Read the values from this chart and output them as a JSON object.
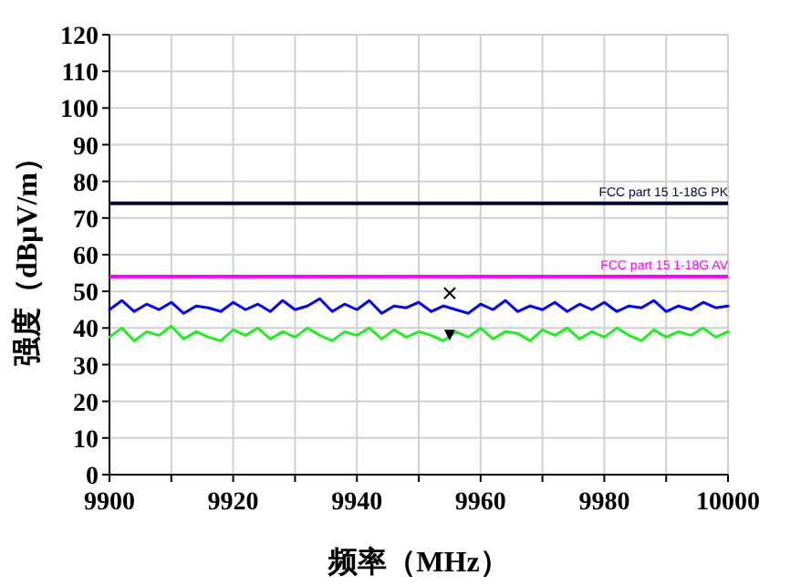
{
  "chart_data": {
    "type": "line",
    "xlabel": "频率（MHz）",
    "ylabel": "强度（dBμV/m）",
    "xlim": [
      9900,
      10000
    ],
    "xticks": [
      9900,
      {
        "value": 9910,
        "label": null
      },
      9920,
      {
        "value": 9930,
        "label": null
      },
      9940,
      {
        "value": 9950,
        "label": null
      },
      9960,
      {
        "value": 9970,
        "label": null
      },
      9980,
      {
        "value": 9990,
        "label": null
      },
      10000
    ],
    "ylim": [
      0,
      120
    ],
    "yticks": [
      0,
      10,
      20,
      30,
      40,
      50,
      60,
      70,
      80,
      90,
      100,
      110,
      120
    ],
    "grid": true,
    "marker": "none",
    "line_style": "solid",
    "ref_lines": [
      {
        "axis": "y",
        "value": 74,
        "label": "FCC part 15  1-18G  PK",
        "color": "#000033"
      },
      {
        "axis": "y",
        "value": 54,
        "label": "FCC part 15  1-18G  AV",
        "color": "#ff00ff"
      }
    ],
    "series": [
      {
        "color": "#0000ff",
        "x": [
          9900,
          9902,
          9904,
          9906,
          9908,
          9910,
          9912,
          9914,
          9916,
          9918,
          9920,
          9922,
          9924,
          9926,
          9928,
          9930,
          9932,
          9934,
          9936,
          9938,
          9940,
          9942,
          9944,
          9946,
          9948,
          9950,
          9952,
          9954,
          9956,
          9958,
          9960,
          9962,
          9964,
          9966,
          9968,
          9970,
          9972,
          9974,
          9976,
          9978,
          9980,
          9982,
          9984,
          9986,
          9988,
          9990,
          9992,
          9994,
          9996,
          9998,
          10000
        ],
        "values": [
          45,
          47.5,
          44.5,
          46.5,
          45,
          47,
          44,
          46,
          45.5,
          44.5,
          47,
          45,
          46.5,
          44.5,
          47.5,
          45,
          46,
          48,
          44.5,
          46.5,
          45,
          47.5,
          44,
          46,
          45.5,
          47,
          44.5,
          46,
          45,
          44,
          46.5,
          45,
          47.5,
          44.5,
          46,
          45,
          47,
          44.5,
          46.5,
          45,
          47,
          44.5,
          46,
          45.5,
          47.5,
          44.5,
          46,
          45,
          47,
          45.5,
          46
        ]
      },
      {
        "color": "#22ee22",
        "x": [
          9900,
          9902,
          9904,
          9906,
          9908,
          9910,
          9912,
          9914,
          9916,
          9918,
          9920,
          9922,
          9924,
          9926,
          9928,
          9930,
          9932,
          9934,
          9936,
          9938,
          9940,
          9942,
          9944,
          9946,
          9948,
          9950,
          9952,
          9954,
          9956,
          9958,
          9960,
          9962,
          9964,
          9966,
          9968,
          9970,
          9972,
          9974,
          9976,
          9978,
          9980,
          9982,
          9984,
          9986,
          9988,
          9990,
          9992,
          9994,
          9996,
          9998,
          10000
        ],
        "values": [
          37.5,
          40,
          36.5,
          39,
          38,
          40.5,
          37,
          39,
          37.5,
          36.5,
          39.5,
          38,
          40,
          37,
          39,
          37.5,
          40,
          38,
          36.5,
          39,
          38,
          40,
          37,
          39.5,
          37.5,
          39,
          38,
          36.5,
          39,
          37.5,
          40,
          37,
          39,
          38.5,
          36.5,
          39.5,
          38,
          40,
          37,
          39,
          37.5,
          40,
          38,
          36.5,
          39.5,
          37.5,
          39,
          38,
          40,
          37.5,
          39
        ]
      },
      {
        "type": "scatter",
        "marker": "cross",
        "color": "#000000",
        "x": [
          9955
        ],
        "values": [
          49.5
        ]
      },
      {
        "type": "scatter",
        "marker": "triangle",
        "color": "#000000",
        "x": [
          9955
        ],
        "values": [
          38
        ]
      }
    ]
  }
}
